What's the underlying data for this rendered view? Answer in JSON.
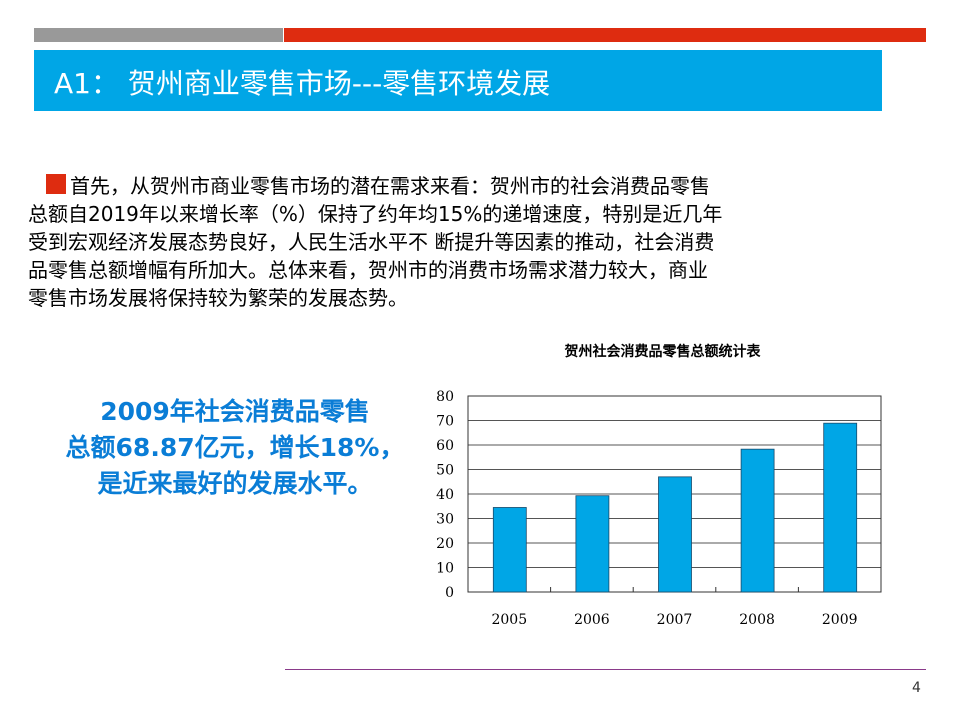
{
  "slide": {
    "title": "A1： 贺州商业零售市场---零售环境发展",
    "paragraph_lines": [
      "首先，从贺州市商业零售市场的潜在需求来看：贺州市的社会消费品零售",
      "总额自2019年以来增长率（%）保持了约年均15%的递增速度，特别是近几年",
      "受到宏观经济发展态势良好，人民生活水平不 断提升等因素的推动，社会消费",
      "品零售总额增幅有所加大。总体来看，贺州市的消费市场需求潜力较大，商业",
      "零售市场发展将保持较为繁荣的发展态势。"
    ],
    "highlight_lines": [
      "2009年社会消费品零售",
      "总额68.87亿元，增长18%，",
      "是近来最好的发展水平。"
    ],
    "page_number": "4",
    "colors": {
      "accent_blue": "#00a6e6",
      "accent_red": "#de2c10",
      "bar": "#00a6e6",
      "highlight_text": "#0a7dd6"
    }
  },
  "chart_data": {
    "type": "bar",
    "title": "贺州社会消费品零售总额统计表",
    "categories": [
      "2005",
      "2006",
      "2007",
      "2008",
      "2009"
    ],
    "values": [
      34.5,
      39.3,
      47,
      58.3,
      68.9
    ],
    "ylim": [
      0,
      80
    ],
    "yticks": [
      "0",
      "10",
      "20",
      "30",
      "40",
      "50",
      "60",
      "70",
      "80"
    ],
    "grid": true,
    "legend": "none"
  }
}
